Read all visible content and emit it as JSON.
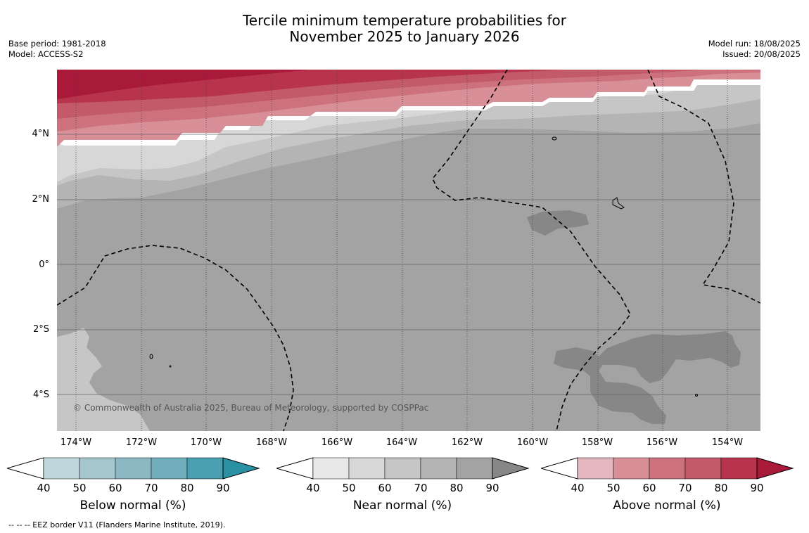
{
  "title_line1": "Tercile minimum temperature probabilities for",
  "title_line2": "November 2025 to January 2026",
  "meta_left": {
    "base_period": "Base period: 1981-2018",
    "model": "Model: ACCESS-S2"
  },
  "meta_right": {
    "model_run": "Model run: 18/08/2025",
    "issued": "Issued: 20/08/2025"
  },
  "map": {
    "copyright": "© Commonwealth of Australia 2025, Bureau of Meteorology, supported by COSPPac",
    "x_ticks": [
      "174°W",
      "172°W",
      "170°W",
      "168°W",
      "166°W",
      "164°W",
      "162°W",
      "160°W",
      "158°W",
      "156°W",
      "154°W"
    ],
    "y_ticks": [
      "4°N",
      "2°N",
      "0°",
      "2°S",
      "4°S"
    ],
    "colors": {
      "near_normal": [
        "#e8e8e8",
        "#d7d7d7",
        "#c6c6c6",
        "#b4b4b4",
        "#a3a3a3",
        "#878787"
      ],
      "above_normal": [
        "#e4b8be",
        "#d88f98",
        "#cd717c",
        "#c25a6a",
        "#b8344c",
        "#a8193a"
      ],
      "below_normal": [
        "#bfd6dc",
        "#a5c6cc",
        "#8cb8c4",
        "#70aebc",
        "#4aa0b0",
        "#2a90a4"
      ]
    }
  },
  "colorbars": [
    {
      "label": "Below normal (%)",
      "ticks": [
        "40",
        "50",
        "60",
        "70",
        "80",
        "90"
      ]
    },
    {
      "label": "Near normal (%)",
      "ticks": [
        "40",
        "50",
        "60",
        "70",
        "80",
        "90"
      ]
    },
    {
      "label": "Above normal (%)",
      "ticks": [
        "40",
        "50",
        "60",
        "70",
        "80",
        "90"
      ]
    }
  ],
  "footer": "--  --  -- EEZ border V11 (Flanders Marine Institute, 2019)."
}
